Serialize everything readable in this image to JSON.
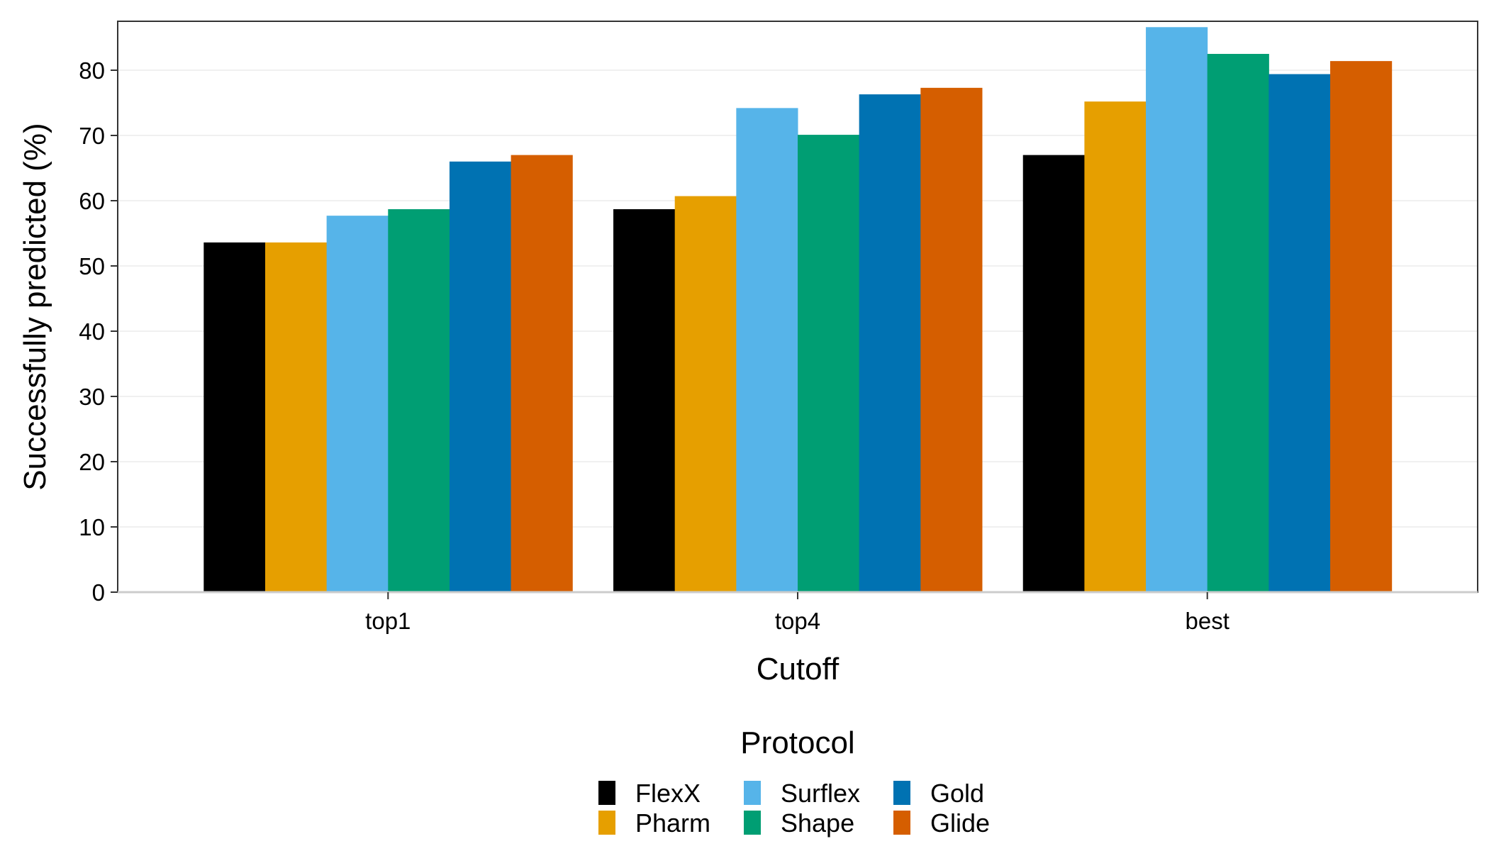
{
  "chart_data": {
    "type": "bar",
    "categories": [
      "top1",
      "top4",
      "best"
    ],
    "series": [
      {
        "name": "FlexX",
        "color": "#000000",
        "values": [
          53.6,
          58.7,
          67.0
        ]
      },
      {
        "name": "Pharm",
        "color": "#E69F00",
        "values": [
          53.6,
          60.7,
          75.2
        ]
      },
      {
        "name": "Surflex",
        "color": "#56B4E9",
        "values": [
          57.7,
          74.2,
          86.6
        ]
      },
      {
        "name": "Shape",
        "color": "#009E73",
        "values": [
          58.7,
          70.1,
          82.5
        ]
      },
      {
        "name": "Gold",
        "color": "#0072B2",
        "values": [
          66.0,
          76.3,
          79.4
        ]
      },
      {
        "name": "Glide",
        "color": "#D55E00",
        "values": [
          67.0,
          77.3,
          81.4
        ]
      }
    ],
    "xlabel": "Cutoff",
    "ylabel": "Successfully predicted (%)",
    "ylim": [
      0,
      87.5
    ],
    "yticks": [
      0,
      10,
      20,
      30,
      40,
      50,
      60,
      70,
      80
    ],
    "legend_title": "Protocol",
    "legend_position": "bottom",
    "grid": "horizontal"
  }
}
